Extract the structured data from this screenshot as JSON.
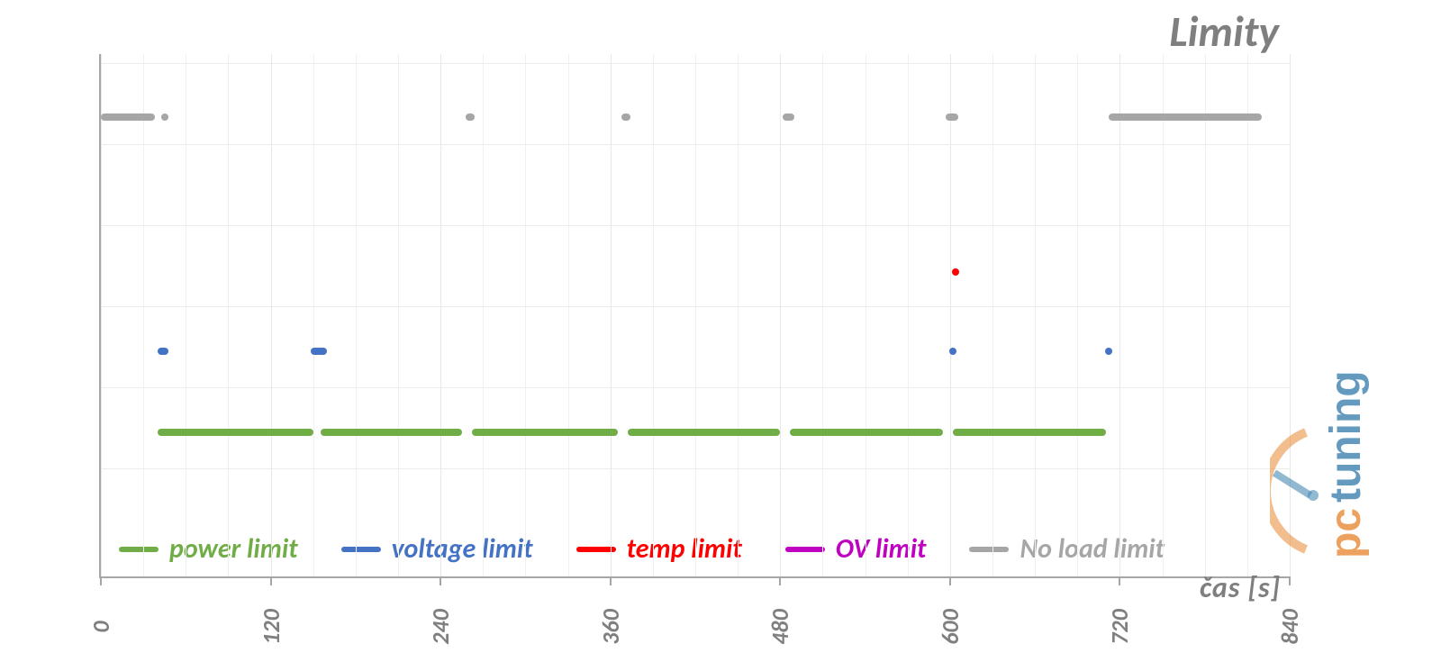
{
  "chart": {
    "type": "timeline-scatter",
    "title": "Limity",
    "title_fontsize": 48,
    "title_color": "#7f7f7f",
    "xlabel": "čas [s]",
    "xlabel_fontsize": 32,
    "xlabel_color": "#7f7f7f",
    "xlim": [
      0,
      840
    ],
    "xtick_step": 120,
    "xticks": [
      0,
      120,
      240,
      360,
      480,
      600,
      720,
      840
    ],
    "y_rows": 5,
    "grid_color": "#f0f0f0",
    "axis_color": "#a6a6a6",
    "background_color": "#ffffff",
    "series": [
      {
        "name": "power limit",
        "color": "#70ad47",
        "y_row": 1,
        "segments": [
          {
            "x0": 40,
            "x1": 150
          },
          {
            "x0": 155,
            "x1": 255
          },
          {
            "x0": 262,
            "x1": 365
          },
          {
            "x0": 372,
            "x1": 480
          },
          {
            "x0": 487,
            "x1": 595
          },
          {
            "x0": 602,
            "x1": 710
          }
        ]
      },
      {
        "name": "voltage limit",
        "color": "#4472c4",
        "y_row": 2,
        "segments": [
          {
            "x0": 40,
            "x1": 48
          },
          {
            "x0": 148,
            "x1": 160
          }
        ],
        "points": [
          602,
          712
        ]
      },
      {
        "name": "temp limit",
        "color": "#ff0000",
        "y_row": 3,
        "points": [
          604
        ]
      },
      {
        "name": "OV limit",
        "color": "#c000c0",
        "y_row": 3,
        "points": []
      },
      {
        "name": "No load limit",
        "color": "#a6a6a6",
        "y_row": 4,
        "segments": [
          {
            "x0": 0,
            "x1": 38
          },
          {
            "x0": 258,
            "x1": 264
          },
          {
            "x0": 368,
            "x1": 374
          },
          {
            "x0": 482,
            "x1": 490
          },
          {
            "x0": 597,
            "x1": 606
          },
          {
            "x0": 712,
            "x1": 820
          }
        ],
        "points": [
          45
        ]
      }
    ],
    "legend": [
      {
        "label": "power limit",
        "color": "#70ad47"
      },
      {
        "label": "voltage limit",
        "color": "#4472c4"
      },
      {
        "label": "temp limit",
        "color": "#ff0000"
      },
      {
        "label": "OV limit",
        "color": "#c000c0"
      },
      {
        "label": "No load limit",
        "color": "#a6a6a6"
      }
    ],
    "legend_fontsize": 30
  },
  "watermark": {
    "text_pc": "pc",
    "text_tuning": "tuning",
    "color_pc": "#e67e22",
    "color_tuning": "#2874a6",
    "arc_color": "#e67e22"
  }
}
